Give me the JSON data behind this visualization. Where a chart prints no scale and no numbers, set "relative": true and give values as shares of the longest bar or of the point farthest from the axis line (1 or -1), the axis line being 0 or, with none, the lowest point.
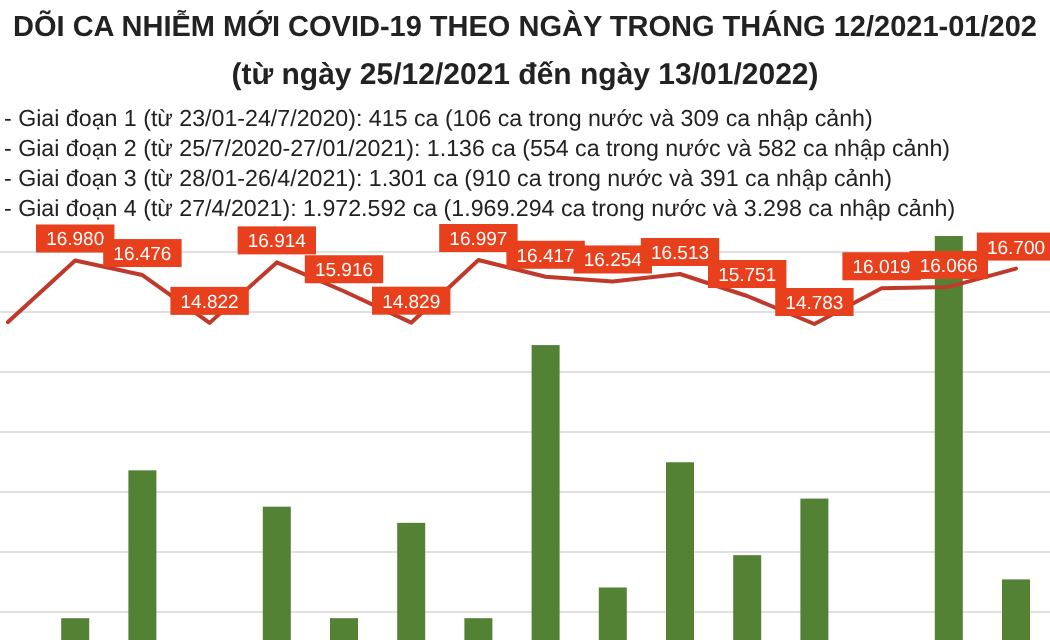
{
  "chart_data": [
    {
      "type": "line",
      "title": "DÕI CA NHIỄM MỚI COVID-19 THEO NGÀY TRONG THÁNG 12/2021-01/202",
      "subtitle": "(từ ngày 25/12/2021 đến ngày 13/01/2022)",
      "annotations": [
        "- Giai đoạn 1 (từ 23/01-24/7/2020): 415 ca (106 ca trong nước và 309 ca nhập cảnh)",
        "- Giai đoạn 2 (từ 25/7/2020-27/01/2021): 1.136 ca (554 ca trong nước và 582 ca nhập cảnh)",
        "- Giai đoạn 3 (từ 28/01-26/4/2021): 1.301 ca (910 ca trong nước và 391 ca nhập cảnh)",
        "- Giai đoạn 4 (từ 27/4/2021): 1.972.592 ca (1.969.294 ca trong nước và 3.298 ca nhập cảnh)"
      ],
      "categories": [
        null,
        null,
        null,
        null,
        null,
        null,
        null,
        null,
        null,
        null,
        null,
        null,
        null,
        null,
        null,
        null
      ],
      "series": [
        {
          "color": "#c0392b",
          "values": [
            14850,
            16980,
            16476,
            14822,
            16914,
            15916,
            14829,
            16997,
            16417,
            16254,
            16513,
            15751,
            14783,
            16019,
            16066,
            16700
          ],
          "value_labels": [
            null,
            "16.980",
            "16.476",
            "14.822",
            "16.914",
            "15.916",
            "14.829",
            "16.997",
            "16.417",
            "16.254",
            "16.513",
            "15.751",
            "14.783",
            "16.019",
            "16.066",
            "16.700"
          ]
        }
      ]
    },
    {
      "type": "bar",
      "categories": [
        null,
        null,
        null,
        null,
        null,
        null,
        null,
        null,
        null,
        null,
        null,
        null,
        null,
        null,
        null,
        null
      ],
      "relative": true,
      "grid": "y",
      "series": [
        {
          "color": "#548235",
          "values": [
            0,
            0.054,
            0.42,
            0,
            0.33,
            0.054,
            0.29,
            0.054,
            0.73,
            0.13,
            0.44,
            0.21,
            0.35,
            0,
            1,
            0.15
          ]
        }
      ]
    }
  ]
}
